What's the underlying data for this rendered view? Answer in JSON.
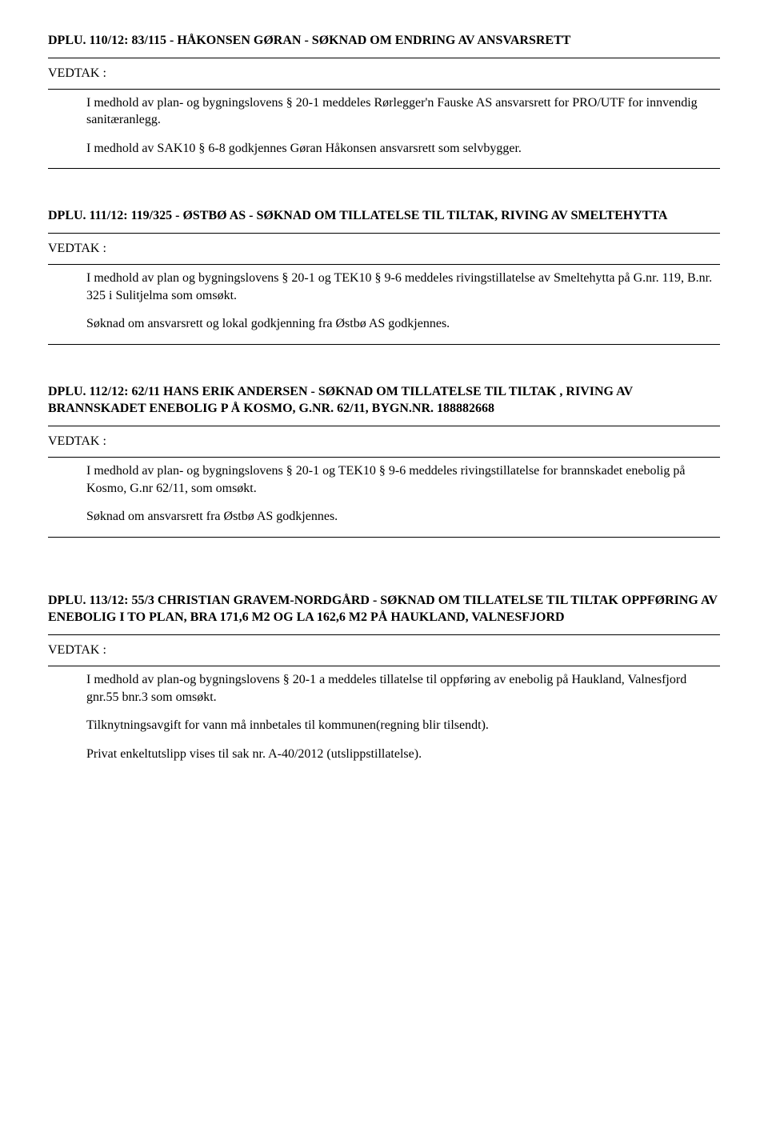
{
  "vedtak_label": "VEDTAK :",
  "cases": [
    {
      "title": "DPLU. 110/12: 83/115 - HÅKONSEN GØRAN - SØKNAD OM ENDRING AV ANSVARSRETT",
      "paragraphs": [
        "I medhold av plan- og bygningslovens § 20-1 meddeles  Rørlegger'n Fauske AS ansvarsrett for PRO/UTF for innvendig sanitæranlegg.",
        "I medhold av SAK10 § 6-8 godkjennes Gøran Håkonsen ansvarsrett som selvbygger."
      ]
    },
    {
      "title": "DPLU. 111/12: 119/325 - ØSTBØ AS - SØKNAD OM TILLATELSE TIL TILTAK, RIVING AV SMELTEHYTTA",
      "paragraphs": [
        "I medhold av plan og bygningslovens § 20-1 og TEK10 § 9-6 meddeles rivingstillatelse av Smeltehytta på G.nr. 119, B.nr. 325 i Sulitjelma som omsøkt.",
        "Søknad om ansvarsrett og lokal godkjenning fra Østbø AS godkjennes."
      ]
    },
    {
      "title": "DPLU. 112/12: 62/11 HANS ERIK ANDERSEN - SØKNAD OM TILLATELSE TIL TILTAK , RIVING AV BRANNSKADET ENEBOLIG P Å KOSMO, G.NR. 62/11, BYGN.NR. 188882668",
      "paragraphs": [
        "I medhold av plan- og bygningslovens § 20-1 og TEK10 § 9-6 meddeles rivingstillatelse for brannskadet enebolig på Kosmo, G.nr 62/11, som omsøkt.",
        "Søknad om ansvarsrett fra Østbø AS godkjennes."
      ]
    },
    {
      "title": "DPLU. 113/12: 55/3 CHRISTIAN GRAVEM-NORDGÅRD - SØKNAD OM TILLATELSE TIL TILTAK OPPFØRING AV ENEBOLIG I TO PLAN, BRA 171,6 M2 OG LA 162,6 M2 PÅ HAUKLAND, VALNESFJORD",
      "paragraphs": [
        "I medhold av plan-og bygningslovens § 20-1 a meddeles tillatelse til oppføring av enebolig på Haukland, Valnesfjord gnr.55 bnr.3 som omsøkt.",
        "Tilknytningsavgift for vann må innbetales til kommunen(regning blir tilsendt).",
        "Privat enkeltutslipp vises til sak nr. A-40/2012 (utslippstillatelse)."
      ]
    }
  ]
}
